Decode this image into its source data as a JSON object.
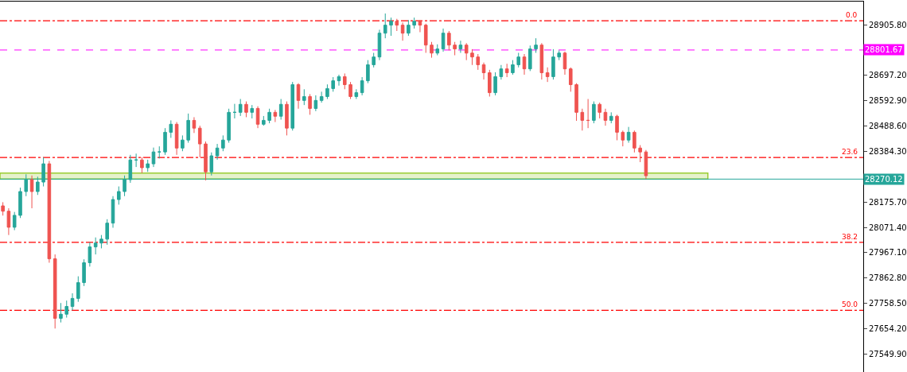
{
  "chart_data": {
    "type": "candlestick",
    "categories": [
      null,
      null,
      null,
      null,
      null,
      null,
      null,
      null,
      null,
      null,
      null,
      null,
      null,
      null,
      null,
      null,
      null,
      null,
      null,
      null,
      null,
      null,
      null,
      null,
      null,
      null,
      null,
      null,
      null,
      null,
      null,
      null,
      null,
      null,
      null,
      null,
      null,
      null,
      null,
      null,
      null,
      null,
      null,
      null,
      null,
      null,
      null,
      null,
      null,
      null,
      null,
      null,
      null,
      null,
      null,
      null,
      null,
      null,
      null,
      null,
      null,
      null,
      null,
      null,
      null,
      null,
      null,
      null,
      null,
      null,
      null,
      null,
      null,
      null,
      null,
      null,
      null,
      null,
      null,
      null,
      null,
      null,
      null,
      null,
      null,
      null,
      null,
      null,
      null,
      null,
      null,
      null,
      null,
      null,
      null,
      null,
      null,
      null,
      null,
      null,
      null,
      null,
      null,
      null,
      null,
      null,
      null,
      null,
      null,
      null,
      null,
      null,
      null,
      null,
      null,
      null,
      null,
      null,
      null,
      null,
      null,
      null,
      null,
      null,
      null,
      null,
      null,
      null,
      null,
      null,
      null,
      null,
      null,
      null,
      null,
      null,
      null,
      null,
      null,
      null,
      null,
      null,
      null,
      null,
      null,
      null,
      null,
      null,
      null
    ],
    "ohlc": [
      [
        28160,
        28175,
        28120,
        28138
      ],
      [
        28138,
        28150,
        28040,
        28072
      ],
      [
        28072,
        28135,
        28060,
        28121
      ],
      [
        28121,
        28235,
        28110,
        28219
      ],
      [
        28219,
        28290,
        28200,
        28268
      ],
      [
        28268,
        28285,
        28150,
        28219
      ],
      [
        28219,
        28280,
        28205,
        28258
      ],
      [
        28258,
        28359,
        28240,
        28333
      ],
      [
        28333,
        28345,
        27926,
        27942
      ],
      [
        27942,
        27960,
        27655,
        27697
      ],
      [
        27697,
        27760,
        27680,
        27714
      ],
      [
        27714,
        27770,
        27700,
        27746
      ],
      [
        27746,
        27800,
        27730,
        27779
      ],
      [
        27779,
        27870,
        27765,
        27844
      ],
      [
        27844,
        27940,
        27830,
        27926
      ],
      [
        27926,
        28010,
        27910,
        27991
      ],
      [
        27991,
        28030,
        27960,
        28007
      ],
      [
        28007,
        28040,
        27985,
        28023
      ],
      [
        28023,
        28105,
        28000,
        28089
      ],
      [
        28089,
        28200,
        28070,
        28186
      ],
      [
        28186,
        28240,
        28165,
        28219
      ],
      [
        28219,
        28285,
        28200,
        28268
      ],
      [
        28268,
        28370,
        28255,
        28349
      ],
      [
        28349,
        28375,
        28320,
        28349
      ],
      [
        28349,
        28360,
        28295,
        28317
      ],
      [
        28317,
        28350,
        28300,
        28333
      ],
      [
        28333,
        28400,
        28320,
        28382
      ],
      [
        28382,
        28405,
        28355,
        28382
      ],
      [
        28382,
        28480,
        28370,
        28463
      ],
      [
        28463,
        28512,
        28440,
        28496
      ],
      [
        28496,
        28505,
        28370,
        28398
      ],
      [
        28398,
        28450,
        28385,
        28431
      ],
      [
        28431,
        28540,
        28420,
        28512
      ],
      [
        28512,
        28525,
        28460,
        28480
      ],
      [
        28480,
        28490,
        28360,
        28415
      ],
      [
        28415,
        28425,
        28265,
        28300
      ],
      [
        28300,
        28380,
        28285,
        28366
      ],
      [
        28366,
        28415,
        28350,
        28398
      ],
      [
        28398,
        28450,
        28385,
        28431
      ],
      [
        28431,
        28560,
        28420,
        28545
      ],
      [
        28545,
        28580,
        28520,
        28545
      ],
      [
        28545,
        28600,
        28530,
        28578
      ],
      [
        28578,
        28590,
        28525,
        28545
      ],
      [
        28545,
        28575,
        28520,
        28561
      ],
      [
        28561,
        28570,
        28480,
        28496
      ],
      [
        28496,
        28530,
        28490,
        28512
      ],
      [
        28512,
        28560,
        28500,
        28545
      ],
      [
        28545,
        28555,
        28505,
        28529
      ],
      [
        28529,
        28600,
        28515,
        28578
      ],
      [
        28578,
        28590,
        28450,
        28480
      ],
      [
        28480,
        28670,
        28470,
        28659
      ],
      [
        28659,
        28665,
        28560,
        28594
      ],
      [
        28594,
        28640,
        28575,
        28610
      ],
      [
        28610,
        28620,
        28535,
        28561
      ],
      [
        28561,
        28615,
        28550,
        28594
      ],
      [
        28594,
        28630,
        28585,
        28610
      ],
      [
        28610,
        28660,
        28600,
        28643
      ],
      [
        28643,
        28690,
        28630,
        28675
      ],
      [
        28675,
        28700,
        28655,
        28692
      ],
      [
        28692,
        28705,
        28640,
        28659
      ],
      [
        28659,
        28670,
        28600,
        28610
      ],
      [
        28610,
        28640,
        28600,
        28626
      ],
      [
        28626,
        28690,
        28615,
        28675
      ],
      [
        28675,
        28760,
        28665,
        28741
      ],
      [
        28741,
        28790,
        28730,
        28773
      ],
      [
        28773,
        28885,
        28760,
        28871
      ],
      [
        28871,
        28952,
        28850,
        28904
      ],
      [
        28904,
        28935,
        28860,
        28920
      ],
      [
        28920,
        28930,
        28880,
        28904
      ],
      [
        28904,
        28915,
        28840,
        28871
      ],
      [
        28871,
        28925,
        28860,
        28904
      ],
      [
        28904,
        28935,
        28890,
        28920
      ],
      [
        28920,
        28925,
        28875,
        28904
      ],
      [
        28904,
        28910,
        28790,
        28822
      ],
      [
        28822,
        28835,
        28770,
        28789
      ],
      [
        28789,
        28825,
        28780,
        28806
      ],
      [
        28806,
        28890,
        28795,
        28871
      ],
      [
        28871,
        28880,
        28800,
        28822
      ],
      [
        28822,
        28835,
        28780,
        28806
      ],
      [
        28806,
        28840,
        28790,
        28822
      ],
      [
        28822,
        28830,
        28760,
        28789
      ],
      [
        28789,
        28805,
        28740,
        28773
      ],
      [
        28773,
        28785,
        28720,
        28741
      ],
      [
        28741,
        28750,
        28680,
        28708
      ],
      [
        28708,
        28720,
        28610,
        28626
      ],
      [
        28626,
        28710,
        28615,
        28692
      ],
      [
        28692,
        28740,
        28680,
        28724
      ],
      [
        28724,
        28745,
        28690,
        28708
      ],
      [
        28708,
        28760,
        28700,
        28741
      ],
      [
        28741,
        28790,
        28730,
        28773
      ],
      [
        28773,
        28785,
        28700,
        28724
      ],
      [
        28724,
        28820,
        28715,
        28806
      ],
      [
        28806,
        28850,
        28790,
        28822
      ],
      [
        28822,
        28830,
        28680,
        28708
      ],
      [
        28708,
        28730,
        28670,
        28692
      ],
      [
        28692,
        28805,
        28680,
        28773
      ],
      [
        28773,
        28800,
        28760,
        28789
      ],
      [
        28789,
        28795,
        28700,
        28724
      ],
      [
        28724,
        28730,
        28630,
        28659
      ],
      [
        28659,
        28665,
        28510,
        28545
      ],
      [
        28545,
        28560,
        28470,
        28512
      ],
      [
        28512,
        28600,
        28480,
        28512
      ],
      [
        28512,
        28590,
        28500,
        28578
      ],
      [
        28578,
        28585,
        28520,
        28545
      ],
      [
        28545,
        28560,
        28490,
        28512
      ],
      [
        28512,
        28545,
        28500,
        28529
      ],
      [
        28529,
        28535,
        28430,
        28463
      ],
      [
        28463,
        28470,
        28405,
        28431
      ],
      [
        28431,
        28485,
        28420,
        28463
      ],
      [
        28463,
        28470,
        28380,
        28398
      ],
      [
        28398,
        28410,
        28340,
        28382
      ],
      [
        28382,
        28390,
        28271,
        28284
      ],
      null,
      null,
      null,
      null,
      null,
      null,
      null,
      null,
      null,
      null,
      null,
      null,
      null,
      null,
      null,
      null,
      null,
      null,
      null,
      null,
      null,
      null,
      null,
      null,
      null,
      null,
      null,
      null,
      null,
      null,
      null,
      null,
      null,
      null,
      null,
      null,
      null
    ],
    "ylim": [
      27476,
      29001
    ],
    "yticks": [
      {
        "value": 28905.8,
        "label": "28905.80"
      },
      {
        "value": 28697.2,
        "label": "28697.20"
      },
      {
        "value": 28592.9,
        "label": "28592.90"
      },
      {
        "value": 28488.6,
        "label": "28488.60"
      },
      {
        "value": 28384.3,
        "label": "28384.30"
      },
      {
        "value": 28175.7,
        "label": "28175.70"
      },
      {
        "value": 28071.4,
        "label": "28071.40"
      },
      {
        "value": 27967.1,
        "label": "27967.10"
      },
      {
        "value": 27862.8,
        "label": "27862.80"
      },
      {
        "value": 27758.5,
        "label": "27758.50"
      },
      {
        "value": 27654.2,
        "label": "27654.20"
      },
      {
        "value": 27549.9,
        "label": "27549.90"
      }
    ],
    "ref_lines": [
      {
        "axis": "y",
        "value": 28922,
        "color": "#ff0000",
        "line_style": "dashdot"
      },
      {
        "axis": "y",
        "value": 28359,
        "color": "#ff0000",
        "line_style": "dashdot"
      },
      {
        "axis": "y",
        "value": 28010,
        "color": "#ff0000",
        "line_style": "dashdot"
      },
      {
        "axis": "y",
        "value": 27730,
        "color": "#ff0000",
        "line_style": "dashdot"
      },
      {
        "axis": "y",
        "value": 28801.67,
        "label": "28801.67",
        "color": "#ff00ff",
        "line_style": "dashed"
      },
      {
        "axis": "y",
        "value": 28270.12,
        "label": "28270.12",
        "color": "#26a69a",
        "line_style": "solid"
      }
    ],
    "annotations": [
      {
        "text": "0.0",
        "y": 28922
      },
      {
        "text": "23.6",
        "y": 28359
      },
      {
        "text": "38.2",
        "y": 28010
      },
      {
        "text": "50.0",
        "y": 27730
      }
    ],
    "bands": [
      {
        "axis": "y",
        "from": 28270.12,
        "to": 28295,
        "color": "#9acd32"
      }
    ],
    "grid": false
  }
}
